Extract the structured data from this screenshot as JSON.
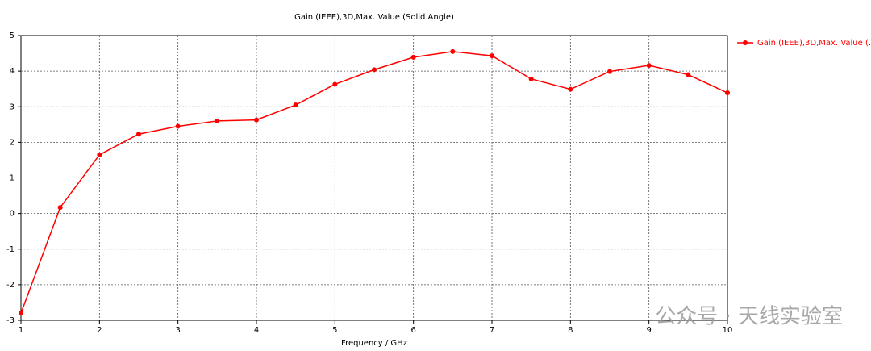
{
  "chart_data": {
    "type": "line",
    "title": "Gain (IEEE),3D,Max. Value (Solid Angle)",
    "x_label": "Frequency / GHz",
    "x": [
      1,
      1.5,
      2,
      2.5,
      3,
      3.5,
      4,
      4.5,
      5,
      5.5,
      6,
      6.5,
      7,
      7.5,
      8,
      8.5,
      9,
      9.5,
      10
    ],
    "series": [
      {
        "name": "Gain (IEEE),3D,Max. Value (...",
        "color": "#ff0000",
        "values": [
          -2.8,
          0.17,
          1.65,
          2.23,
          2.45,
          2.6,
          2.63,
          3.05,
          3.63,
          4.04,
          4.39,
          4.55,
          4.43,
          3.78,
          3.49,
          3.99,
          4.16,
          3.9,
          3.39
        ]
      }
    ],
    "xlim": [
      1,
      10
    ],
    "xticks": [
      1,
      2,
      3,
      4,
      5,
      6,
      7,
      8,
      9,
      10
    ],
    "ylim": [
      -3,
      5
    ],
    "yticks": [
      -3,
      -2,
      -1,
      0,
      1,
      2,
      3,
      4,
      5
    ],
    "grid": true,
    "legend": "right",
    "watermark": "公众号 · 天线实验室"
  }
}
